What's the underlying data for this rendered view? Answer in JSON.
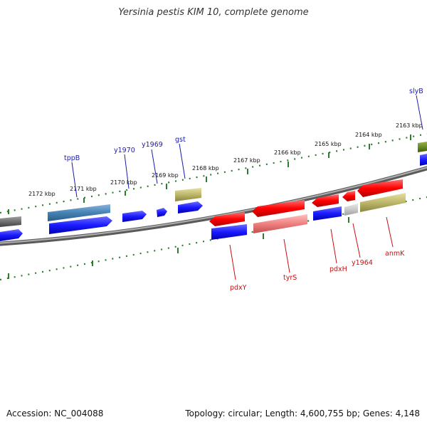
{
  "title": "Yersinia pestis KIM 10, complete genome",
  "footer": {
    "accession": "Accession: NC_004088",
    "stats": "Topology: circular; Length: 4,600,755 bp; Genes: 4,148"
  },
  "colors": {
    "forward_label": "#1a1aa8",
    "reverse_label": "#c81010",
    "backbone": "#8c8c8c",
    "tick": "#2e7d2e"
  },
  "scale": {
    "ticks": [
      "2163 kbp",
      "2164 kbp",
      "2165 kbp",
      "2166 kbp",
      "2167 kbp",
      "2168 kbp",
      "2169 kbp",
      "2170 kbp",
      "2171 kbp",
      "2172 kbp"
    ]
  },
  "genes": {
    "forward": [
      "slyB",
      "tppB",
      "y1970",
      "y1969",
      "gst"
    ],
    "reverse": [
      "pdxY",
      "tyrS",
      "pdxH",
      "y1964",
      "anmK"
    ]
  }
}
